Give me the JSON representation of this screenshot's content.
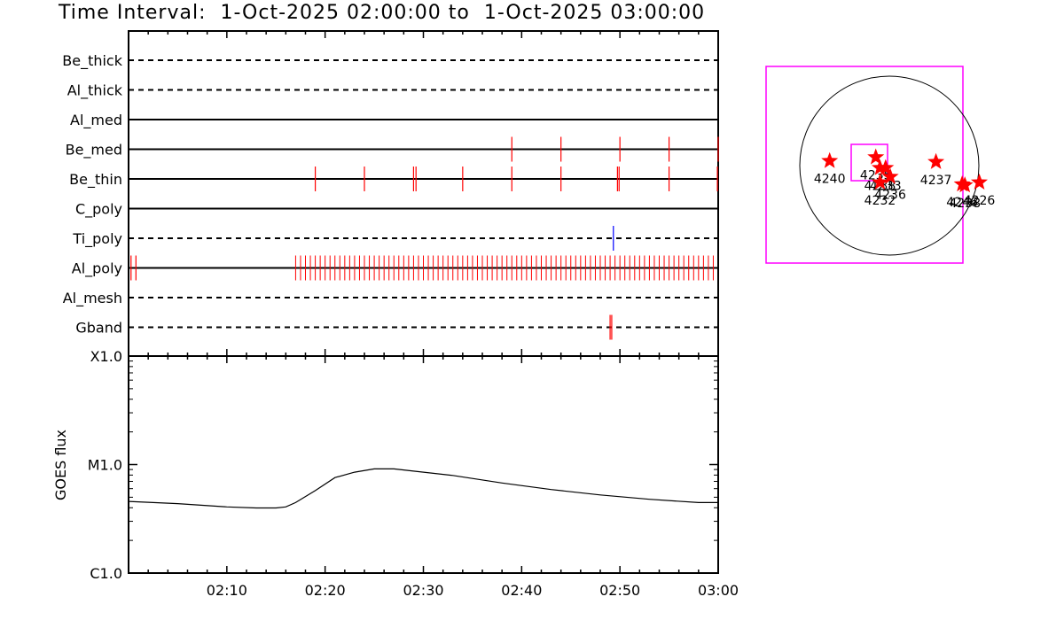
{
  "title": "Time Interval:  1-Oct-2025 02:00:00 to  1-Oct-2025 03:00:00",
  "colors": {
    "frame": "#000000",
    "event_red": "#ff0000",
    "event_blue": "#0000ff",
    "fov_box": "#ff00ff",
    "star": "#ff0000"
  },
  "chart_data": [
    {
      "type": "timeline",
      "xlim": [
        "02:00",
        "03:00"
      ],
      "channels": [
        {
          "name": "Be_thick",
          "line": "dashed",
          "events": []
        },
        {
          "name": "Al_thick",
          "line": "dashed",
          "events": []
        },
        {
          "name": "Al_med",
          "line": "solid",
          "events": []
        },
        {
          "name": "Be_med",
          "line": "solid",
          "color": "#ff0000",
          "events": [
            "02:39:00",
            "02:44:00",
            "02:50:00",
            "02:55:00",
            "03:00:00"
          ]
        },
        {
          "name": "Be_thin",
          "line": "solid",
          "color": "#ff0000",
          "events": [
            "02:19:00",
            "02:24:00",
            "02:29:00",
            "02:29:15",
            "02:34:00",
            "02:39:00",
            "02:44:00",
            "02:49:45",
            "02:49:55",
            "02:55:00",
            "02:59:55"
          ]
        },
        {
          "name": "C_poly",
          "line": "solid",
          "events": []
        },
        {
          "name": "Ti_poly",
          "line": "dashed",
          "color": "#0000ff",
          "events": [
            "02:49:20"
          ]
        },
        {
          "name": "Al_poly",
          "line": "solid",
          "color": "#ff0000",
          "events_dense": {
            "start": "02:17:00",
            "end": "02:59:45",
            "step_sec": 30
          },
          "events": [
            "02:00:15",
            "02:00:45"
          ]
        },
        {
          "name": "Al_mesh",
          "line": "dashed",
          "events": []
        },
        {
          "name": "Gband",
          "line": "dashed",
          "color": "#ff0000",
          "events": [
            "02:49:00",
            "02:49:10"
          ]
        }
      ]
    },
    {
      "type": "line",
      "ylabel": "GOES flux",
      "yscale": "log",
      "ylim": [
        "C1.0",
        "X1.0"
      ],
      "yticks": [
        "C1.0",
        "M1.0",
        "X1.0"
      ],
      "x_tick_labels": [
        "02:10",
        "02:20",
        "02:30",
        "02:40",
        "02:50",
        "03:00"
      ],
      "series": [
        {
          "x": [
            "02:00",
            "02:05",
            "02:10",
            "02:13",
            "02:15",
            "02:16",
            "02:17",
            "02:19",
            "02:21",
            "02:23",
            "02:25",
            "02:27",
            "02:29",
            "02:33",
            "02:38",
            "02:43",
            "02:48",
            "02:53",
            "02:58",
            "03:00"
          ],
          "y_log_decades_above_C1": [
            0.66,
            0.64,
            0.61,
            0.6,
            0.6,
            0.61,
            0.65,
            0.76,
            0.88,
            0.93,
            0.96,
            0.96,
            0.94,
            0.9,
            0.83,
            0.77,
            0.72,
            0.68,
            0.65,
            0.65
          ]
        }
      ]
    },
    {
      "type": "scatter",
      "subtitle": "",
      "points": [
        {
          "label": "4240",
          "x": -640,
          "y": 50
        },
        {
          "label": "4235",
          "x": -145,
          "y": 90
        },
        {
          "label": "4238",
          "x": -100,
          "y": -25
        },
        {
          "label": "4233",
          "x": -40,
          "y": -25
        },
        {
          "label": "4236",
          "x": 10,
          "y": -120
        },
        {
          "label": "4232",
          "x": -100,
          "y": -180
        },
        {
          "label": "4237",
          "x": 500,
          "y": 40
        },
        {
          "label": "4246",
          "x": 780,
          "y": -200
        },
        {
          "label": "4238",
          "x": 810,
          "y": -210
        },
        {
          "label": "4226",
          "x": 965,
          "y": -180
        }
      ],
      "solar_limb": true
    }
  ]
}
